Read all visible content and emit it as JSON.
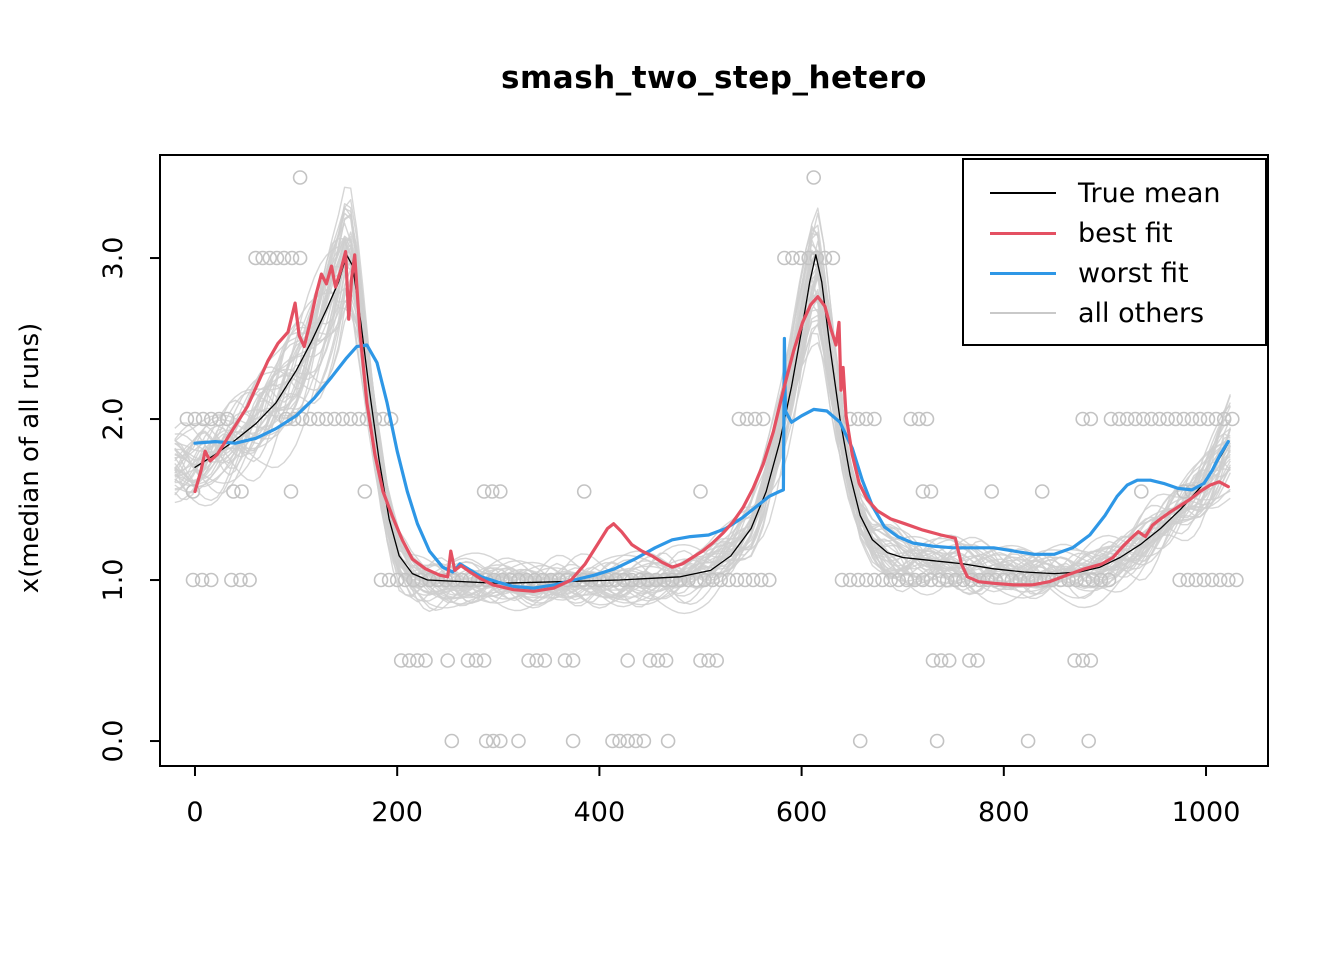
{
  "page": {
    "background": "#ffffff"
  },
  "chart_data": {
    "type": "line",
    "title": "smash_two_step_hetero",
    "xlabel": "",
    "ylabel": "x(median of all runs)",
    "xlim": [
      -34.6,
      1061.3
    ],
    "ylim": [
      -0.155,
      3.64
    ],
    "grid": false,
    "x_ticks": {
      "values": [
        0,
        200,
        400,
        600,
        800,
        1000
      ],
      "labels": [
        "0",
        "200",
        "400",
        "600",
        "800",
        "1000"
      ]
    },
    "y_ticks": {
      "values": [
        0,
        1,
        2,
        3
      ],
      "labels": [
        "0.0",
        "1.0",
        "2.0",
        "3.0"
      ]
    },
    "legend": {
      "position": "top-right",
      "entries": [
        {
          "label": "True mean",
          "color": "#000000",
          "lwd": 2
        },
        {
          "label": "best fit",
          "color": "#e45062",
          "lwd": 3
        },
        {
          "label": "worst fit",
          "color": "#2e97e6",
          "lwd": 3
        },
        {
          "label": "all others",
          "color": "#c9c9c9",
          "lwd": 2
        }
      ]
    },
    "series": [
      {
        "name": "True mean",
        "color": "#000000",
        "lwd": 1.3,
        "points": [
          [
            0,
            1.7
          ],
          [
            20,
            1.78
          ],
          [
            40,
            1.87
          ],
          [
            60,
            1.97
          ],
          [
            80,
            2.1
          ],
          [
            100,
            2.3
          ],
          [
            115,
            2.48
          ],
          [
            130,
            2.68
          ],
          [
            142,
            2.85
          ],
          [
            150,
            3.02
          ],
          [
            156,
            2.95
          ],
          [
            164,
            2.6
          ],
          [
            172,
            2.2
          ],
          [
            182,
            1.75
          ],
          [
            192,
            1.38
          ],
          [
            202,
            1.15
          ],
          [
            215,
            1.04
          ],
          [
            230,
            1.0
          ],
          [
            300,
            0.98
          ],
          [
            360,
            0.99
          ],
          [
            420,
            1.0
          ],
          [
            480,
            1.02
          ],
          [
            510,
            1.06
          ],
          [
            530,
            1.15
          ],
          [
            550,
            1.32
          ],
          [
            565,
            1.55
          ],
          [
            578,
            1.85
          ],
          [
            590,
            2.2
          ],
          [
            600,
            2.55
          ],
          [
            608,
            2.85
          ],
          [
            614,
            3.02
          ],
          [
            620,
            2.85
          ],
          [
            628,
            2.45
          ],
          [
            638,
            2.0
          ],
          [
            648,
            1.65
          ],
          [
            658,
            1.4
          ],
          [
            670,
            1.25
          ],
          [
            685,
            1.17
          ],
          [
            700,
            1.14
          ],
          [
            730,
            1.12
          ],
          [
            760,
            1.1
          ],
          [
            790,
            1.07
          ],
          [
            820,
            1.05
          ],
          [
            850,
            1.04
          ],
          [
            875,
            1.05
          ],
          [
            895,
            1.08
          ],
          [
            915,
            1.14
          ],
          [
            935,
            1.22
          ],
          [
            955,
            1.32
          ],
          [
            975,
            1.44
          ],
          [
            995,
            1.58
          ],
          [
            1010,
            1.72
          ],
          [
            1022,
            1.85
          ]
        ]
      },
      {
        "name": "worst fit",
        "color": "#2e97e6",
        "lwd": 3.2,
        "points": [
          [
            0,
            1.85
          ],
          [
            20,
            1.86
          ],
          [
            40,
            1.85
          ],
          [
            60,
            1.88
          ],
          [
            80,
            1.94
          ],
          [
            100,
            2.02
          ],
          [
            118,
            2.13
          ],
          [
            135,
            2.26
          ],
          [
            150,
            2.38
          ],
          [
            160,
            2.45
          ],
          [
            170,
            2.46
          ],
          [
            180,
            2.35
          ],
          [
            190,
            2.1
          ],
          [
            200,
            1.8
          ],
          [
            210,
            1.55
          ],
          [
            220,
            1.35
          ],
          [
            232,
            1.18
          ],
          [
            245,
            1.08
          ],
          [
            255,
            1.05
          ],
          [
            262,
            1.1
          ],
          [
            270,
            1.07
          ],
          [
            283,
            1.02
          ],
          [
            298,
            0.99
          ],
          [
            315,
            0.96
          ],
          [
            335,
            0.95
          ],
          [
            355,
            0.97
          ],
          [
            375,
            1.0
          ],
          [
            395,
            1.03
          ],
          [
            415,
            1.07
          ],
          [
            435,
            1.13
          ],
          [
            455,
            1.2
          ],
          [
            472,
            1.25
          ],
          [
            490,
            1.27
          ],
          [
            508,
            1.28
          ],
          [
            525,
            1.32
          ],
          [
            542,
            1.39
          ],
          [
            556,
            1.46
          ],
          [
            568,
            1.52
          ],
          [
            578,
            1.55
          ],
          [
            582,
            1.56
          ],
          [
            583,
            2.5
          ],
          [
            584,
            2.05
          ],
          [
            590,
            1.98
          ],
          [
            600,
            2.02
          ],
          [
            612,
            2.06
          ],
          [
            625,
            2.05
          ],
          [
            638,
            1.98
          ],
          [
            650,
            1.82
          ],
          [
            660,
            1.62
          ],
          [
            670,
            1.46
          ],
          [
            682,
            1.33
          ],
          [
            695,
            1.27
          ],
          [
            710,
            1.23
          ],
          [
            730,
            1.21
          ],
          [
            750,
            1.2
          ],
          [
            770,
            1.2
          ],
          [
            790,
            1.2
          ],
          [
            810,
            1.18
          ],
          [
            830,
            1.16
          ],
          [
            850,
            1.16
          ],
          [
            868,
            1.2
          ],
          [
            885,
            1.28
          ],
          [
            900,
            1.4
          ],
          [
            912,
            1.52
          ],
          [
            922,
            1.59
          ],
          [
            932,
            1.62
          ],
          [
            945,
            1.62
          ],
          [
            958,
            1.6
          ],
          [
            972,
            1.57
          ],
          [
            986,
            1.56
          ],
          [
            998,
            1.6
          ],
          [
            1006,
            1.68
          ],
          [
            1014,
            1.78
          ],
          [
            1022,
            1.86
          ]
        ]
      },
      {
        "name": "best fit",
        "color": "#e45062",
        "lwd": 3.2,
        "points": [
          [
            0,
            1.55
          ],
          [
            6,
            1.68
          ],
          [
            10,
            1.8
          ],
          [
            15,
            1.74
          ],
          [
            22,
            1.78
          ],
          [
            32,
            1.88
          ],
          [
            42,
            1.98
          ],
          [
            52,
            2.08
          ],
          [
            62,
            2.22
          ],
          [
            72,
            2.36
          ],
          [
            82,
            2.47
          ],
          [
            92,
            2.54
          ],
          [
            99,
            2.72
          ],
          [
            103,
            2.52
          ],
          [
            108,
            2.45
          ],
          [
            114,
            2.6
          ],
          [
            120,
            2.78
          ],
          [
            125,
            2.9
          ],
          [
            130,
            2.84
          ],
          [
            135,
            2.95
          ],
          [
            139,
            2.82
          ],
          [
            144,
            2.92
          ],
          [
            149,
            3.04
          ],
          [
            152,
            2.62
          ],
          [
            155,
            2.88
          ],
          [
            158,
            3.02
          ],
          [
            163,
            2.55
          ],
          [
            170,
            2.1
          ],
          [
            178,
            1.78
          ],
          [
            186,
            1.55
          ],
          [
            195,
            1.4
          ],
          [
            205,
            1.25
          ],
          [
            215,
            1.13
          ],
          [
            228,
            1.07
          ],
          [
            242,
            1.03
          ],
          [
            250,
            1.02
          ],
          [
            253,
            1.18
          ],
          [
            257,
            1.06
          ],
          [
            263,
            1.09
          ],
          [
            272,
            1.05
          ],
          [
            282,
            1.01
          ],
          [
            295,
            0.97
          ],
          [
            315,
            0.94
          ],
          [
            335,
            0.93
          ],
          [
            355,
            0.95
          ],
          [
            372,
            1.0
          ],
          [
            386,
            1.1
          ],
          [
            398,
            1.22
          ],
          [
            408,
            1.32
          ],
          [
            414,
            1.35
          ],
          [
            422,
            1.3
          ],
          [
            432,
            1.22
          ],
          [
            442,
            1.18
          ],
          [
            452,
            1.15
          ],
          [
            462,
            1.11
          ],
          [
            472,
            1.08
          ],
          [
            482,
            1.1
          ],
          [
            492,
            1.14
          ],
          [
            502,
            1.18
          ],
          [
            512,
            1.23
          ],
          [
            522,
            1.29
          ],
          [
            532,
            1.36
          ],
          [
            542,
            1.45
          ],
          [
            552,
            1.57
          ],
          [
            562,
            1.72
          ],
          [
            572,
            1.92
          ],
          [
            582,
            2.18
          ],
          [
            592,
            2.42
          ],
          [
            601,
            2.6
          ],
          [
            609,
            2.71
          ],
          [
            616,
            2.76
          ],
          [
            623,
            2.7
          ],
          [
            629,
            2.56
          ],
          [
            634,
            2.46
          ],
          [
            637,
            2.6
          ],
          [
            639,
            2.18
          ],
          [
            641,
            2.32
          ],
          [
            644,
            2.02
          ],
          [
            650,
            1.78
          ],
          [
            657,
            1.6
          ],
          [
            665,
            1.5
          ],
          [
            675,
            1.43
          ],
          [
            688,
            1.38
          ],
          [
            702,
            1.35
          ],
          [
            720,
            1.31
          ],
          [
            738,
            1.28
          ],
          [
            752,
            1.26
          ],
          [
            758,
            1.1
          ],
          [
            764,
            1.02
          ],
          [
            775,
            0.99
          ],
          [
            790,
            0.98
          ],
          [
            810,
            0.97
          ],
          [
            828,
            0.97
          ],
          [
            845,
            0.99
          ],
          [
            862,
            1.03
          ],
          [
            880,
            1.07
          ],
          [
            897,
            1.1
          ],
          [
            908,
            1.14
          ],
          [
            918,
            1.21
          ],
          [
            926,
            1.26
          ],
          [
            933,
            1.3
          ],
          [
            940,
            1.27
          ],
          [
            947,
            1.34
          ],
          [
            955,
            1.38
          ],
          [
            964,
            1.42
          ],
          [
            974,
            1.46
          ],
          [
            984,
            1.5
          ],
          [
            994,
            1.55
          ],
          [
            1004,
            1.59
          ],
          [
            1013,
            1.61
          ],
          [
            1022,
            1.58
          ]
        ]
      }
    ],
    "scatter": {
      "name": "all-others-points",
      "color": "#c3c3c3",
      "radius": 6.5,
      "stroke_width": 1.6,
      "rows": [
        {
          "y": 3.5,
          "singles": [
            104,
            612
          ]
        },
        {
          "y": 3.0,
          "singles": [
            60,
            67,
            74,
            81,
            88,
            96,
            104,
            583,
            591,
            599,
            607,
            615,
            623,
            631
          ]
        },
        {
          "y": 2.0,
          "runs": [
            [
              -8,
              32,
              8
            ],
            [
              90,
              196,
              8
            ],
            [
              538,
              562,
              8
            ],
            [
              648,
              678,
              8
            ],
            [
              708,
              730,
              8
            ],
            [
              906,
              1030,
              8
            ]
          ],
          "singles": [
            878,
            886
          ]
        },
        {
          "y": 1.55,
          "singles": [
            -2,
            38,
            46,
            95,
            168,
            286,
            294,
            302,
            385,
            500,
            720,
            728,
            788,
            838,
            936,
            978,
            986
          ]
        },
        {
          "y": 1.0,
          "runs": [
            [
              -2,
              16,
              9
            ],
            [
              36,
              58,
              9
            ],
            [
              184,
              574,
              8
            ],
            [
              640,
              904,
              8
            ],
            [
              974,
              1032,
              8
            ]
          ]
        },
        {
          "y": 0.5,
          "singles": [
            204,
            212,
            220,
            228,
            250,
            270,
            278,
            286,
            330,
            338,
            346,
            366,
            374,
            428,
            450,
            458,
            466,
            500,
            508,
            516,
            730,
            738,
            746,
            766,
            774,
            870,
            878,
            886
          ]
        },
        {
          "y": 0.0,
          "singles": [
            254,
            288,
            295,
            302,
            320,
            374,
            413,
            420,
            428,
            436,
            444,
            468,
            658,
            734,
            824,
            884
          ]
        }
      ]
    },
    "ensemble": {
      "name": "all others",
      "color": "#cfcfcf",
      "width": 1.4,
      "opacity": 0.85,
      "count": 40,
      "seed": 20240613,
      "base_noise": 0.12,
      "peak_noise": 0.13,
      "offset": 0.12,
      "step": 6,
      "x_min": -20,
      "x_max": 1026
    }
  }
}
